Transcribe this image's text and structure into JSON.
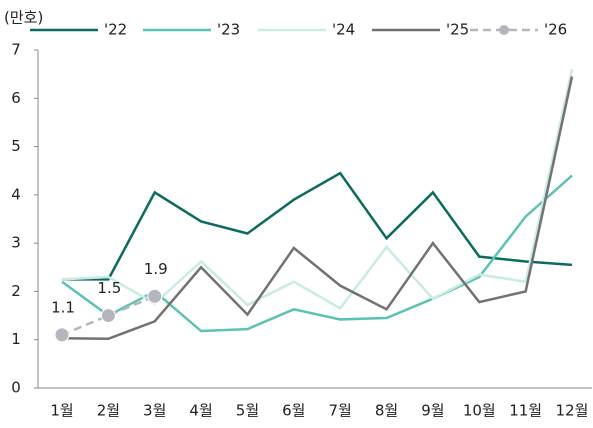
{
  "chart_data": {
    "type": "line",
    "y_label": "(만호)",
    "categories": [
      "1월",
      "2월",
      "3월",
      "4월",
      "5월",
      "6월",
      "7월",
      "8월",
      "9월",
      "10월",
      "11월",
      "12월"
    ],
    "series": [
      {
        "name": "'22",
        "color": "#0b6b5d",
        "values": [
          2.25,
          2.25,
          4.05,
          3.45,
          3.2,
          3.9,
          4.45,
          3.1,
          4.05,
          2.72,
          2.62,
          2.55
        ]
      },
      {
        "name": "'23",
        "color": "#5cc2b2",
        "values": [
          2.2,
          1.5,
          2.0,
          1.18,
          1.22,
          1.63,
          1.42,
          1.45,
          1.85,
          2.3,
          3.55,
          4.4
        ]
      },
      {
        "name": "'24",
        "color": "#c8ebe4",
        "values": [
          2.25,
          2.3,
          1.75,
          2.62,
          1.72,
          2.2,
          1.65,
          2.92,
          1.85,
          2.35,
          2.2,
          6.6
        ]
      },
      {
        "name": "'25",
        "color": "#727272",
        "values": [
          1.03,
          1.02,
          1.38,
          2.5,
          1.52,
          2.9,
          2.12,
          1.63,
          3.0,
          1.78,
          2.0,
          6.45
        ]
      },
      {
        "name": "'26",
        "color": "#b5b5bd",
        "dashed": true,
        "markers": true,
        "values": [
          1.1,
          1.5,
          1.9,
          null,
          null,
          null,
          null,
          null,
          null,
          null,
          null,
          null
        ]
      }
    ],
    "ylim": [
      0,
      7
    ],
    "yticks": [
      0,
      1,
      2,
      3,
      4,
      5,
      6,
      7
    ],
    "grid": false
  }
}
